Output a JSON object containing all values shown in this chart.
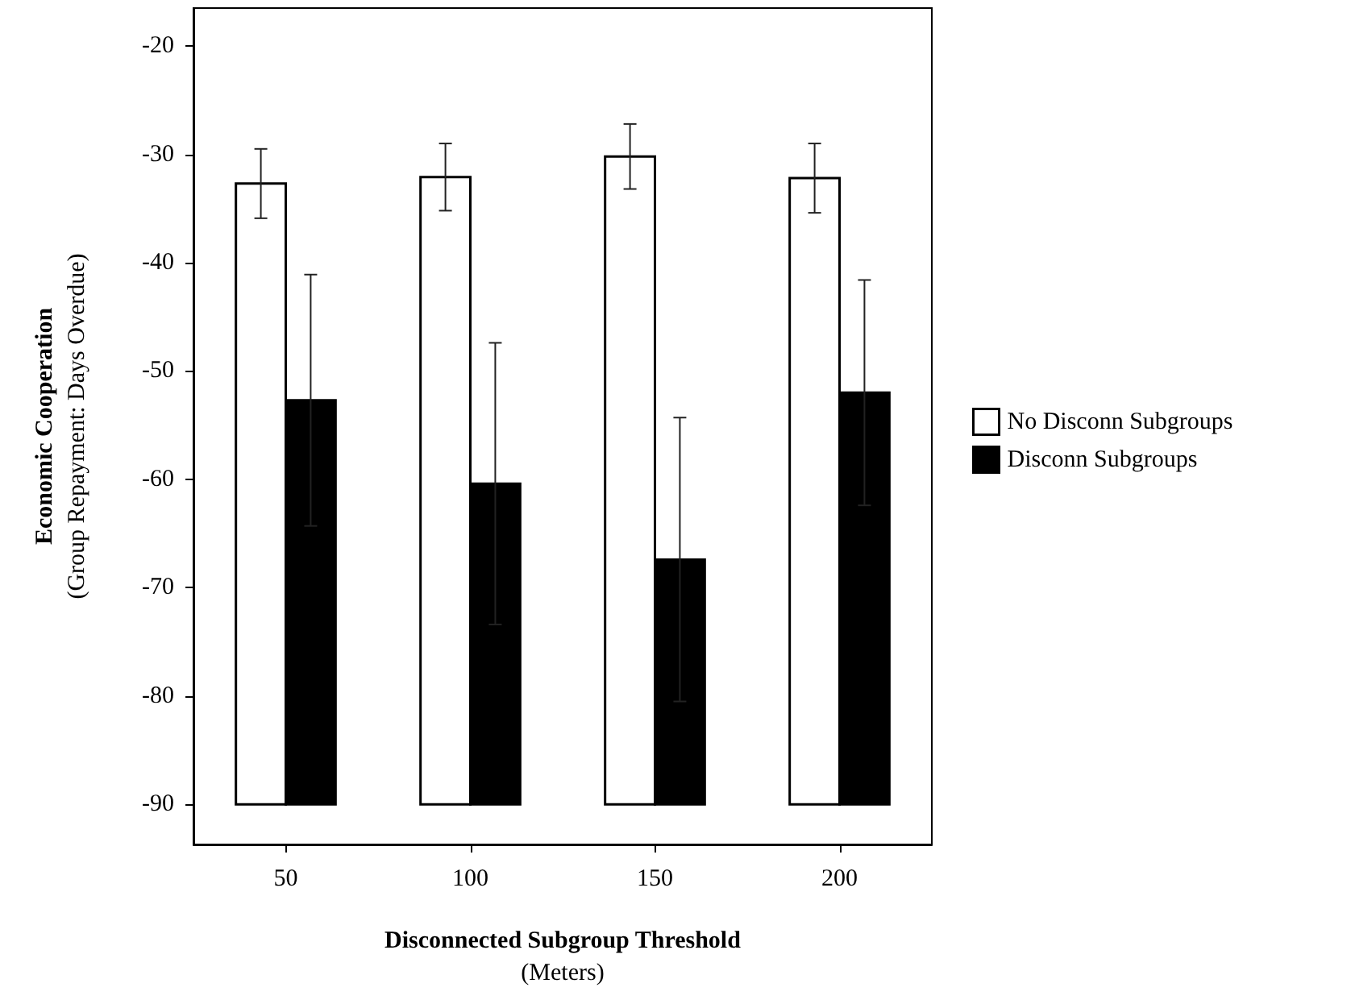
{
  "chart_data": {
    "type": "bar",
    "categories": [
      "50",
      "100",
      "150",
      "200"
    ],
    "series": [
      {
        "name": "No Disconn Subgroups",
        "color": "#ffffff",
        "base": [
          -90,
          -90,
          -90,
          -90
        ],
        "values": [
          57.3,
          57.9,
          59.8,
          57.8
        ],
        "errors": [
          3.2,
          3.1,
          3.0,
          3.2
        ]
      },
      {
        "name": "Disconn Subgroups",
        "color": "#000000",
        "base": [
          -90,
          -90,
          -90,
          -90
        ],
        "values": [
          37.3,
          29.6,
          22.6,
          38.0
        ],
        "errors": [
          11.6,
          13.0,
          13.1,
          10.4
        ]
      }
    ],
    "xlabel": "Disconnected Subgroup Threshold\n(Meters)",
    "ylabel": "Economic Cooperation\n(Group Repayment: Days Overdue)",
    "ylim": [
      -93.7,
      -16.5
    ],
    "yticks": [
      -90,
      -80,
      -70,
      -60,
      -50,
      -40,
      -30,
      -20
    ],
    "grid": false,
    "legend": "right"
  }
}
